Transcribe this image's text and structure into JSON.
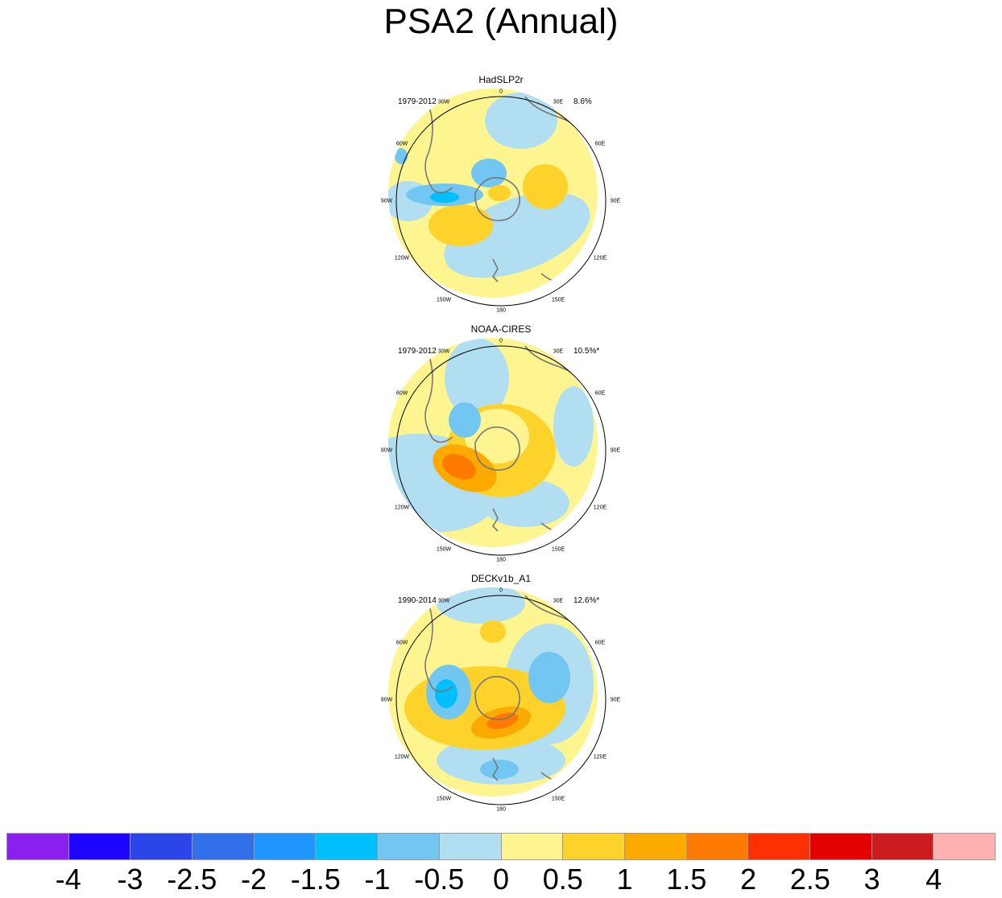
{
  "chart_data": {
    "type": "heatmap",
    "title": "PSA2 (Annual)",
    "projection": "south polar stereographic",
    "panels": [
      {
        "name": "HadSLP2r",
        "period": "1979-2012",
        "variance": "8.6%"
      },
      {
        "name": "NOAA-CIRES",
        "period": "1979-2012",
        "variance": "10.5%*"
      },
      {
        "name": "DECKv1b_A1",
        "period": "1990-2014",
        "variance": "12.6%*"
      }
    ],
    "longitude_labels": [
      "0",
      "30E",
      "60E",
      "90E",
      "120E",
      "150E",
      "180",
      "150W",
      "120W",
      "90W",
      "60W",
      "30W"
    ],
    "colorbar": {
      "labels": [
        "-4",
        "-3",
        "-2.5",
        "-2",
        "-1.5",
        "-1",
        "-0.5",
        "0",
        "0.5",
        "1",
        "1.5",
        "2",
        "2.5",
        "3",
        "4"
      ],
      "colors": [
        "#8b1ff0",
        "#1e05ff",
        "#2c45e8",
        "#3270ea",
        "#1f96fe",
        "#00bffe",
        "#72c6f2",
        "#b2def2",
        "#fef591",
        "#fdd32b",
        "#fdaa00",
        "#fe7a00",
        "#fd3001",
        "#e20000",
        "#cc1c1f",
        "#feb2b2"
      ]
    }
  }
}
